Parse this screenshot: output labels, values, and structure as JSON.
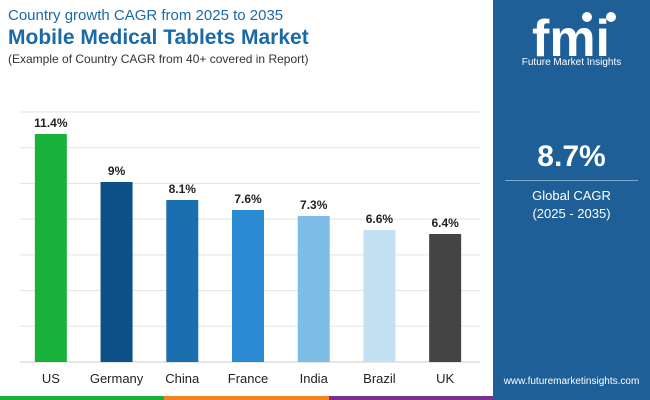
{
  "header": {
    "subtitle": "Country growth CAGR from 2025 to 2035",
    "title": "Mobile Medical Tablets Market",
    "note": "(Example of Country CAGR from 40+ covered in Report)"
  },
  "brand": {
    "logo_text": "fmi",
    "name": "Future Market Insights",
    "website": "www.futuremarketinsights.com"
  },
  "kpi": {
    "value": "8.7%",
    "label": "Global CAGR",
    "period": "(2025 - 2035)"
  },
  "chart_data": {
    "type": "bar",
    "categories": [
      "US",
      "Germany",
      "China",
      "France",
      "India",
      "Brazil",
      "UK"
    ],
    "values": [
      11.4,
      9,
      8.1,
      7.6,
      7.3,
      6.6,
      6.4
    ],
    "value_labels": [
      "11.4%",
      "9%",
      "8.1%",
      "7.6%",
      "7.3%",
      "6.6%",
      "6.4%"
    ],
    "colors": [
      "#18b13a",
      "#0d4f87",
      "#1a6fae",
      "#2a8ad4",
      "#7dbce6",
      "#c4e1f4",
      "#444444"
    ],
    "ylim": [
      0,
      12.5
    ],
    "grid": true,
    "gridline_count": 7
  },
  "colors": {
    "title": "#1b6aa8",
    "panel": "#1e5f97",
    "footer": [
      "#18b13a",
      "#f58220",
      "#7b2f8e"
    ]
  }
}
